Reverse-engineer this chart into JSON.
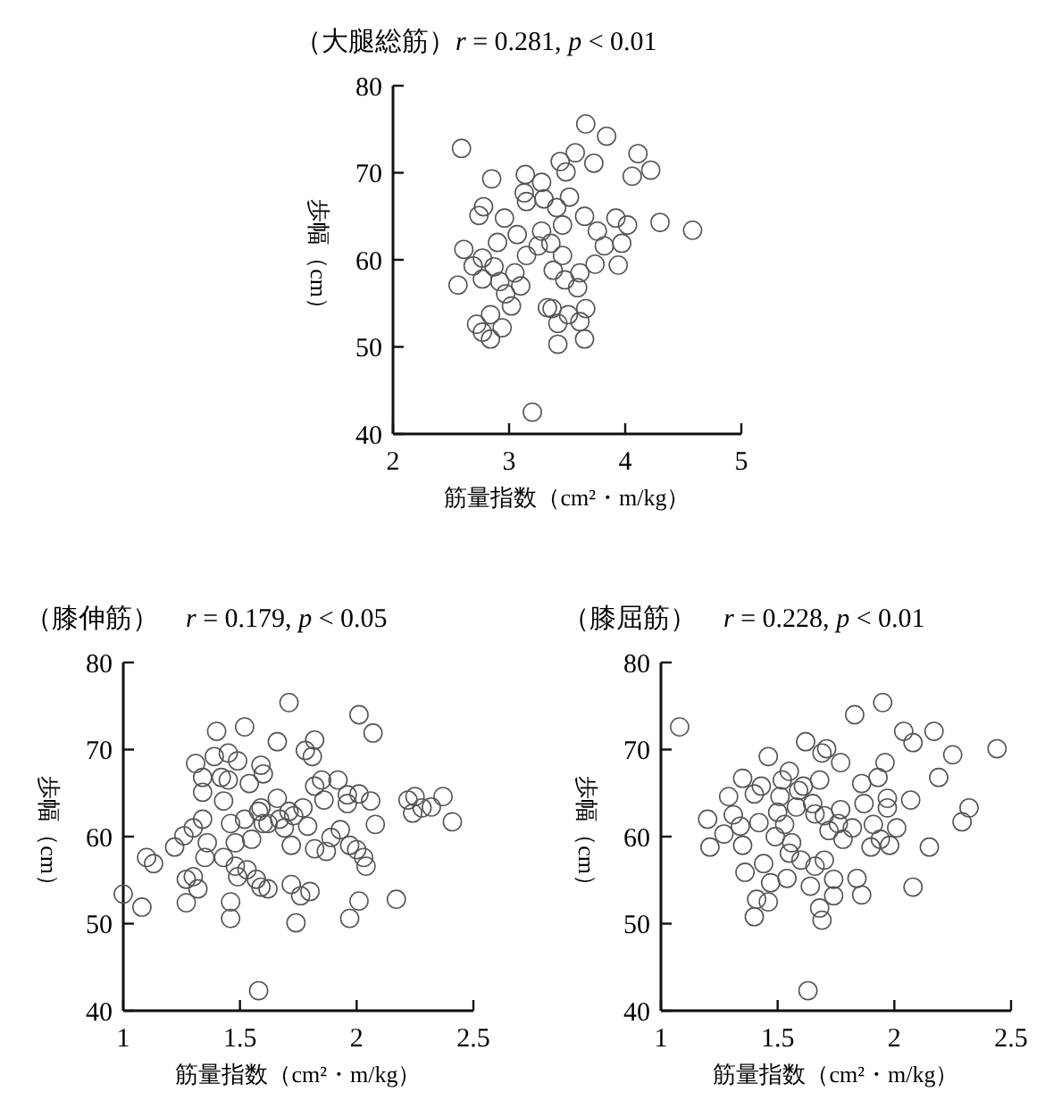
{
  "chart_data": [
    {
      "type": "scatter",
      "title": "（大腿総筋）",
      "subtitle": "r = 0.281, p < 0.01",
      "xlabel": "筋量指数（cm²・m/kg）",
      "ylabel": "歩幅（cm）",
      "xlim": [
        2,
        5
      ],
      "ylim": [
        40,
        80
      ],
      "xticks": [
        2,
        3,
        4,
        5
      ],
      "yticks": [
        40,
        50,
        60,
        70,
        80
      ],
      "marker": "circle",
      "series": [
        {
          "color": "#555555",
          "x": [
            3.66,
            3.84,
            2.59,
            3.57,
            4.11,
            3.44,
            3.73,
            4.22,
            4.06,
            3.49,
            3.14,
            2.85,
            3.28,
            3.13,
            3.3,
            3.52,
            2.78,
            2.74,
            2.96,
            3.15,
            3.41,
            3.65,
            3.92,
            4.02,
            4.3,
            4.58,
            3.76,
            3.46,
            3.07,
            3.28,
            3.36,
            3.25,
            2.9,
            2.61,
            3.82,
            3.97,
            3.15,
            2.77,
            3.46,
            3.94,
            3.74,
            2.87,
            2.69,
            3.38,
            3.05,
            2.77,
            3.61,
            3.48,
            2.56,
            2.92,
            3.1,
            3.59,
            2.97,
            3.02,
            3.33,
            3.37,
            3.66,
            3.51,
            2.84,
            3.61,
            2.72,
            2.94,
            3.42,
            2.77,
            2.84,
            3.65,
            3.42,
            3.2
          ],
          "values": [
            75.6,
            74.2,
            72.8,
            72.3,
            72.2,
            71.3,
            71.1,
            70.3,
            69.6,
            70.1,
            69.8,
            69.3,
            68.9,
            67.7,
            67.0,
            67.2,
            66.1,
            65.1,
            64.8,
            66.7,
            66.0,
            65.0,
            64.8,
            64.0,
            64.3,
            63.4,
            63.3,
            64.0,
            62.9,
            63.3,
            61.9,
            61.6,
            62.0,
            61.2,
            61.6,
            61.9,
            60.5,
            60.2,
            60.5,
            59.4,
            59.5,
            59.2,
            59.3,
            58.8,
            58.5,
            57.8,
            58.5,
            57.7,
            57.1,
            57.5,
            57.0,
            56.8,
            56.1,
            54.7,
            54.5,
            54.4,
            54.4,
            53.7,
            53.7,
            52.9,
            52.6,
            52.2,
            52.7,
            51.7,
            50.9,
            50.9,
            50.3,
            42.5
          ]
        }
      ]
    },
    {
      "type": "scatter",
      "title": "（膝伸筋）",
      "subtitle": "r = 0.179, p < 0.05",
      "xlabel": "筋量指数（cm²・m/kg）",
      "ylabel": "歩幅（cm）",
      "xlim": [
        1,
        2.5
      ],
      "ylim": [
        40,
        80
      ],
      "xticks": [
        1,
        1.5,
        2,
        2.5
      ],
      "yticks": [
        40,
        50,
        60,
        70,
        80
      ],
      "marker": "circle",
      "series": [
        {
          "color": "#555555",
          "x": [
            1.0,
            1.08,
            1.1,
            1.13,
            1.22,
            1.26,
            1.27,
            1.27,
            1.3,
            1.3,
            1.31,
            1.32,
            1.34,
            1.34,
            1.34,
            1.35,
            1.36,
            1.4,
            1.39,
            1.42,
            1.43,
            1.43,
            1.45,
            1.45,
            1.46,
            1.46,
            1.46,
            1.48,
            1.49,
            1.48,
            1.49,
            1.52,
            1.52,
            1.54,
            1.55,
            1.53,
            1.57,
            1.58,
            1.59,
            1.59,
            1.59,
            1.6,
            1.6,
            1.58,
            1.62,
            1.62,
            1.66,
            1.66,
            1.67,
            1.69,
            1.71,
            1.71,
            1.72,
            1.72,
            1.73,
            1.74,
            1.76,
            1.77,
            1.78,
            1.79,
            1.8,
            1.81,
            1.82,
            1.82,
            1.82,
            1.85,
            1.86,
            1.87,
            1.89,
            1.92,
            1.93,
            1.96,
            1.96,
            1.97,
            1.97,
            2.0,
            2.01,
            2.01,
            2.01,
            2.03,
            2.04,
            2.06,
            2.07,
            2.08,
            2.17,
            2.22,
            2.24,
            2.25,
            2.28,
            2.32,
            2.37,
            2.41
          ],
          "values": [
            53.4,
            51.9,
            57.6,
            56.9,
            58.8,
            60.1,
            52.4,
            55.1,
            61.0,
            55.4,
            68.4,
            54.0,
            66.8,
            65.1,
            62.0,
            57.6,
            59.3,
            72.1,
            69.2,
            66.8,
            64.1,
            57.6,
            69.6,
            66.5,
            61.5,
            52.5,
            50.6,
            59.3,
            68.7,
            56.6,
            55.4,
            72.6,
            62.0,
            66.1,
            59.7,
            56.2,
            55.1,
            62.9,
            63.3,
            54.2,
            68.2,
            67.2,
            61.5,
            42.3,
            54.0,
            61.5,
            64.4,
            70.9,
            62.0,
            61.0,
            75.4,
            62.9,
            54.5,
            59.0,
            62.4,
            50.1,
            53.2,
            63.3,
            69.9,
            61.2,
            53.7,
            69.2,
            58.6,
            71.1,
            65.8,
            66.5,
            64.2,
            58.3,
            59.9,
            66.5,
            60.8,
            63.8,
            64.8,
            50.6,
            59.0,
            58.5,
            74.0,
            64.9,
            52.6,
            57.6,
            56.6,
            64.1,
            71.9,
            61.4,
            52.8,
            64.2,
            62.7,
            64.6,
            63.3,
            63.4,
            64.6,
            61.7
          ]
        }
      ]
    },
    {
      "type": "scatter",
      "title": "（膝屈筋）",
      "subtitle": "r = 0.228, p < 0.01",
      "xlabel": "筋量指数（cm²・m/kg）",
      "ylabel": "歩幅（cm）",
      "xlim": [
        1,
        2.5
      ],
      "ylim": [
        40,
        80
      ],
      "xticks": [
        1,
        1.5,
        2,
        2.5
      ],
      "yticks": [
        40,
        50,
        60,
        70,
        80
      ],
      "marker": "circle",
      "series": [
        {
          "color": "#555555",
          "x": [
            1.08,
            1.2,
            1.21,
            1.27,
            1.29,
            1.31,
            1.34,
            1.35,
            1.35,
            1.36,
            1.4,
            1.4,
            1.41,
            1.42,
            1.43,
            1.44,
            1.46,
            1.46,
            1.47,
            1.49,
            1.5,
            1.51,
            1.52,
            1.53,
            1.54,
            1.55,
            1.55,
            1.56,
            1.58,
            1.59,
            1.6,
            1.61,
            1.62,
            1.63,
            1.64,
            1.65,
            1.66,
            1.66,
            1.68,
            1.68,
            1.69,
            1.69,
            1.7,
            1.7,
            1.71,
            1.72,
            1.74,
            1.74,
            1.76,
            1.77,
            1.77,
            1.78,
            1.82,
            1.83,
            1.84,
            1.86,
            1.86,
            1.87,
            1.9,
            1.91,
            1.93,
            1.94,
            1.95,
            1.96,
            1.97,
            1.97,
            1.98,
            2.01,
            2.04,
            2.07,
            2.08,
            2.08,
            2.15,
            2.17,
            2.19,
            2.25,
            2.29,
            2.32,
            2.44
          ],
          "values": [
            72.6,
            62.0,
            58.8,
            60.3,
            64.6,
            62.5,
            61.2,
            66.7,
            59.0,
            55.9,
            50.8,
            64.9,
            52.8,
            61.6,
            65.8,
            56.9,
            69.2,
            52.5,
            54.7,
            60.0,
            62.8,
            64.6,
            66.5,
            61.4,
            55.2,
            67.5,
            58.1,
            59.3,
            63.4,
            65.3,
            57.3,
            65.8,
            70.9,
            42.3,
            54.3,
            63.8,
            62.6,
            56.6,
            66.5,
            51.8,
            50.4,
            69.6,
            62.4,
            57.3,
            70.1,
            60.7,
            55.1,
            53.2,
            61.5,
            68.5,
            63.1,
            59.7,
            61.0,
            74.0,
            55.2,
            53.3,
            66.1,
            63.8,
            58.8,
            61.4,
            66.8,
            59.7,
            75.4,
            68.5,
            64.4,
            63.3,
            59.0,
            61.0,
            72.1,
            64.2,
            70.8,
            54.2,
            58.8,
            72.1,
            66.8,
            69.4,
            61.7,
            63.3,
            70.1
          ]
        }
      ]
    }
  ]
}
